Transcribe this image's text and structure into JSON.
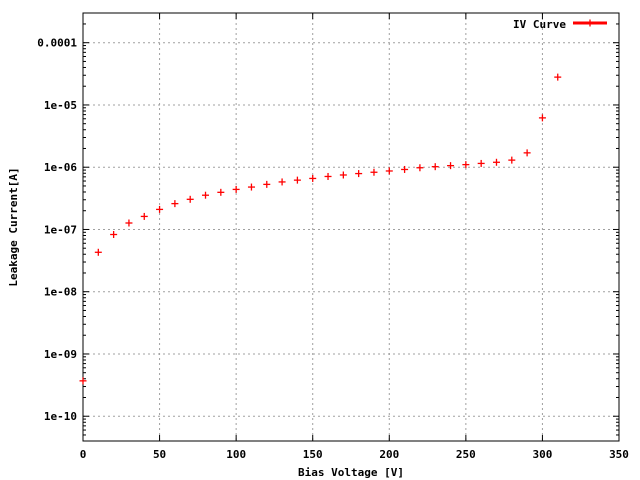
{
  "chart_data": {
    "type": "scatter",
    "title": "",
    "xlabel": "Bias Voltage [V]",
    "ylabel": "Leakage Current[A]",
    "xlim": [
      0,
      350
    ],
    "ylim": [
      4e-11,
      0.0003
    ],
    "yscale": "log",
    "grid": true,
    "legend": "top-right",
    "x_ticks": [
      {
        "value": 0,
        "label": "0"
      },
      {
        "value": 50,
        "label": "50"
      },
      {
        "value": 100,
        "label": "100"
      },
      {
        "value": 150,
        "label": "150"
      },
      {
        "value": 200,
        "label": "200"
      },
      {
        "value": 250,
        "label": "250"
      },
      {
        "value": 300,
        "label": "300"
      },
      {
        "value": 350,
        "label": "350"
      }
    ],
    "y_ticks": [
      {
        "value": 1e-10,
        "label": "1e-10"
      },
      {
        "value": 1e-09,
        "label": "1e-09"
      },
      {
        "value": 1e-08,
        "label": "1e-08"
      },
      {
        "value": 1e-07,
        "label": "1e-07"
      },
      {
        "value": 1e-06,
        "label": "1e-06"
      },
      {
        "value": 1e-05,
        "label": "1e-05"
      },
      {
        "value": 0.0001,
        "label": "0.0001"
      }
    ],
    "series": [
      {
        "name": "IV Curve",
        "color": "#ff0000",
        "marker": "plus",
        "points": [
          {
            "x": 0,
            "y": 3.7e-10
          },
          {
            "x": 10,
            "y": 4.3e-08
          },
          {
            "x": 20,
            "y": 8.3e-08
          },
          {
            "x": 30,
            "y": 1.27e-07
          },
          {
            "x": 40,
            "y": 1.62e-07
          },
          {
            "x": 50,
            "y": 2.1e-07
          },
          {
            "x": 60,
            "y": 2.6e-07
          },
          {
            "x": 70,
            "y": 3.05e-07
          },
          {
            "x": 80,
            "y": 3.55e-07
          },
          {
            "x": 90,
            "y": 3.95e-07
          },
          {
            "x": 100,
            "y": 4.4e-07
          },
          {
            "x": 110,
            "y": 4.8e-07
          },
          {
            "x": 120,
            "y": 5.3e-07
          },
          {
            "x": 130,
            "y": 5.8e-07
          },
          {
            "x": 140,
            "y": 6.2e-07
          },
          {
            "x": 150,
            "y": 6.6e-07
          },
          {
            "x": 160,
            "y": 7.1e-07
          },
          {
            "x": 170,
            "y": 7.5e-07
          },
          {
            "x": 180,
            "y": 7.9e-07
          },
          {
            "x": 190,
            "y": 8.3e-07
          },
          {
            "x": 200,
            "y": 8.7e-07
          },
          {
            "x": 210,
            "y": 9.2e-07
          },
          {
            "x": 220,
            "y": 9.8e-07
          },
          {
            "x": 230,
            "y": 1.02e-06
          },
          {
            "x": 240,
            "y": 1.06e-06
          },
          {
            "x": 250,
            "y": 1.1e-06
          },
          {
            "x": 260,
            "y": 1.15e-06
          },
          {
            "x": 270,
            "y": 1.2e-06
          },
          {
            "x": 280,
            "y": 1.3e-06
          },
          {
            "x": 290,
            "y": 1.7e-06
          },
          {
            "x": 300,
            "y": 6.2e-06
          },
          {
            "x": 310,
            "y": 2.8e-05
          }
        ]
      }
    ]
  }
}
